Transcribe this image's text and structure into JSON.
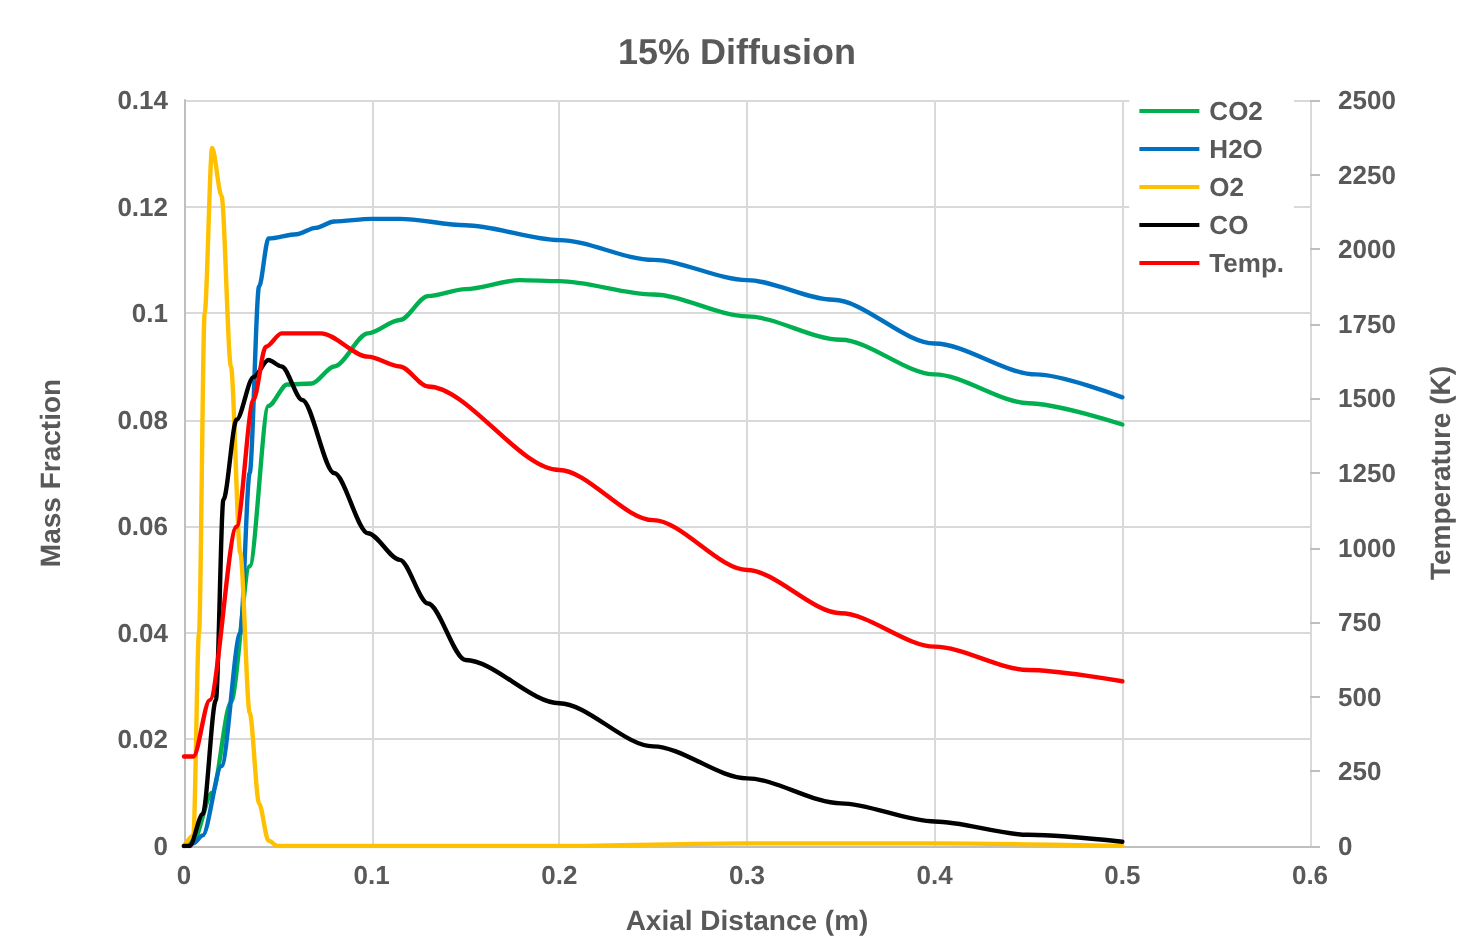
{
  "chart_data": {
    "type": "line",
    "title": "15% Diffusion",
    "xlabel": "Axial Distance (m)",
    "ylabel": "Mass Fraction",
    "y2label": "Temperature (K)",
    "xlim": [
      0,
      0.6
    ],
    "xticks": [
      0,
      0.1,
      0.2,
      0.3,
      0.4,
      0.5,
      0.6
    ],
    "ylim": [
      0,
      0.14
    ],
    "yticks": [
      0,
      0.02,
      0.04,
      0.06,
      0.08,
      0.1,
      0.12,
      0.14
    ],
    "y2lim": [
      0,
      2500
    ],
    "y2ticks": [
      0,
      250,
      500,
      750,
      1000,
      1250,
      1500,
      1750,
      2000,
      2250,
      2500
    ],
    "grid": true,
    "legend": "top right",
    "marker": "none",
    "line_style": "solid",
    "series": [
      {
        "name": "CO2",
        "color": "#00b050",
        "x": [
          0,
          0.005,
          0.015,
          0.025,
          0.035,
          0.045,
          0.055,
          0.068,
          0.08,
          0.098,
          0.115,
          0.13,
          0.15,
          0.179,
          0.2,
          0.25,
          0.3,
          0.35,
          0.4,
          0.45,
          0.5
        ],
        "values": [
          0,
          0.001,
          0.01,
          0.027,
          0.0525,
          0.0826,
          0.0866,
          0.0868,
          0.09,
          0.0962,
          0.0987,
          0.1032,
          0.1045,
          0.1062,
          0.106,
          0.1035,
          0.0994,
          0.095,
          0.0885,
          0.0831,
          0.0791
        ]
      },
      {
        "name": "H2O",
        "color": "#0070c0",
        "x": [
          0,
          0.005,
          0.01,
          0.02,
          0.03,
          0.035,
          0.04,
          0.045,
          0.06,
          0.07,
          0.08,
          0.1,
          0.115,
          0.15,
          0.2,
          0.25,
          0.3,
          0.346,
          0.4,
          0.454,
          0.5
        ],
        "values": [
          0,
          0.0005,
          0.002,
          0.015,
          0.04,
          0.07,
          0.105,
          0.114,
          0.1148,
          0.116,
          0.1172,
          0.1177,
          0.1177,
          0.1165,
          0.1137,
          0.11,
          0.1062,
          0.1025,
          0.0943,
          0.0885,
          0.0842
        ]
      },
      {
        "name": "O2",
        "color": "#ffc000",
        "x": [
          0,
          0.005,
          0.008,
          0.011,
          0.015,
          0.02,
          0.025,
          0.03,
          0.035,
          0.04,
          0.045,
          0.05,
          0.1,
          0.2,
          0.3,
          0.4,
          0.5
        ],
        "values": [
          0,
          0.002,
          0.04,
          0.1,
          0.131,
          0.122,
          0.09,
          0.055,
          0.025,
          0.008,
          0.001,
          0,
          0,
          0,
          0.0005,
          0.0005,
          0
        ]
      },
      {
        "name": "CO",
        "color": "#000000",
        "x": [
          0,
          0.003,
          0.01,
          0.017,
          0.021,
          0.028,
          0.037,
          0.045,
          0.052,
          0.063,
          0.08,
          0.098,
          0.115,
          0.13,
          0.15,
          0.2,
          0.25,
          0.3,
          0.35,
          0.4,
          0.45,
          0.5
        ],
        "values": [
          0,
          0,
          0.006,
          0.0274,
          0.065,
          0.08,
          0.088,
          0.0912,
          0.09,
          0.0837,
          0.07,
          0.0587,
          0.0537,
          0.0455,
          0.0349,
          0.0268,
          0.0187,
          0.0127,
          0.008,
          0.0046,
          0.0021,
          0.0008
        ]
      },
      {
        "name": "Temp.",
        "color": "#ff0000",
        "axis": "y2",
        "x": [
          0,
          0.005,
          0.0137,
          0.028,
          0.037,
          0.0436,
          0.052,
          0.073,
          0.098,
          0.115,
          0.13,
          0.2,
          0.25,
          0.3,
          0.35,
          0.4,
          0.45,
          0.5
        ],
        "values": [
          300,
          300,
          489,
          1070,
          1495,
          1673,
          1718,
          1718,
          1640,
          1607,
          1540,
          1260,
          1092,
          925,
          780,
          668,
          590,
          552
        ]
      }
    ]
  }
}
